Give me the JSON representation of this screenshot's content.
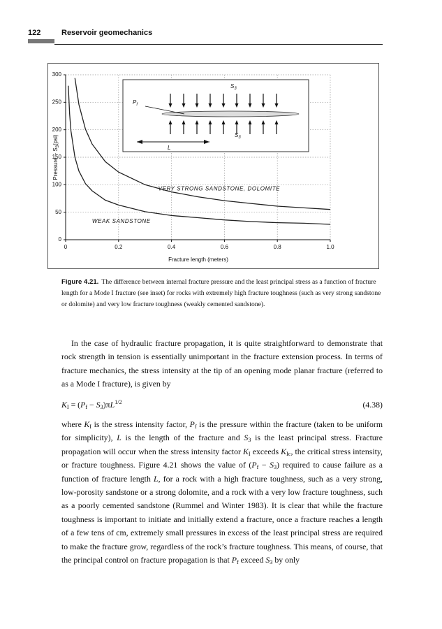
{
  "header": {
    "page_number": "122",
    "running_title": "Reservoir geomechanics"
  },
  "chart_data": {
    "type": "line",
    "ylabel": [
      "Pressure – S",
      "3",
      "(psi)"
    ],
    "xlabel": "Fracture length (meters)",
    "x": [
      0.01,
      0.015,
      0.02,
      0.035,
      0.05,
      0.075,
      0.1,
      0.15,
      0.2,
      0.3,
      0.4,
      0.5,
      0.6,
      0.7,
      0.8,
      0.9,
      1.0
    ],
    "series": [
      {
        "color": "#222222",
        "values": [
          null,
          null,
          null,
          294,
          246,
          201,
          174,
          142,
          123,
          100,
          87,
          78,
          71,
          66,
          61,
          58,
          55
        ]
      },
      {
        "color": "#222222",
        "values": [
          280,
          229,
          198,
          150,
          125,
          102,
          89,
          72,
          63,
          51,
          44,
          40,
          36,
          33,
          31,
          30,
          28
        ]
      }
    ],
    "xlim": [
      0,
      1
    ],
    "ylim": [
      0,
      300
    ],
    "xticks": [
      0,
      0.2,
      0.4,
      0.6,
      0.8,
      {
        "value": 1,
        "label": "1.0"
      }
    ],
    "yticks": [
      0,
      50,
      100,
      150,
      200,
      250,
      300
    ],
    "grid": true,
    "annotations": [
      "VERY STRONG SANDSTONE, DOLOMITE",
      "WEAK SANDSTONE"
    ],
    "inset": {
      "s3_top": [
        "S",
        "3"
      ],
      "s3_bottom": [
        "S",
        "3"
      ],
      "pf": [
        "P",
        "f"
      ],
      "length": "L"
    }
  },
  "caption": {
    "label": "Figure 4.21.",
    "text": "The difference between internal fracture pressure and the least principal stress as a function of fracture length for a Mode I fracture (see inset) for rocks with extremely high fracture toughness (such as very strong sandstone or dolomite) and very low fracture toughness (weakly cemented sandstone)."
  },
  "body": {
    "paragraph1": [
      "In the case of hydraulic fracture propagation, it is quite straightforward to demonstrate that rock strength in tension is essentially unimportant in the fracture extension process. In terms of fracture mechanics, the stress intensity at the tip of an opening mode planar fracture (referred to as a Mode I fracture), is given by"
    ],
    "equation": [
      [
        "K",
        "I"
      ],
      " = (",
      [
        "P",
        "f"
      ],
      " − ",
      [
        "S",
        "3"
      ],
      ")π",
      [
        "L"
      ],
      {
        "sup": "1/2"
      }
    ],
    "equation_number": "(4.38)",
    "paragraph2": [
      "where ",
      [
        "K",
        "I"
      ],
      " is the stress intensity factor, ",
      [
        "P",
        "f"
      ],
      " is the pressure within the fracture (taken to be uniform for simplicity), ",
      [
        "L"
      ],
      " is the length of the fracture and ",
      [
        "S",
        "3"
      ],
      " is the least principal stress. Fracture propagation will occur when the stress intensity factor ",
      [
        "K",
        "I"
      ],
      " exceeds ",
      [
        "K",
        "Ic"
      ],
      ", the critical stress intensity, or fracture toughness. Figure 4.21 shows the value of (",
      [
        "P",
        "f"
      ],
      " − ",
      [
        "S",
        "3"
      ],
      ") required to cause failure as a function of fracture length ",
      [
        "L"
      ],
      ", for a rock with a high fracture toughness, such as a very strong, low-porosity sandstone or a strong dolomite, and a rock with a very low fracture toughness, such as a poorly cemented sandstone (Rummel and Winter 1983). It is clear that while the fracture toughness is important to initiate and initially extend a fracture, once a fracture reaches a length of a few tens of cm, extremely small pressures in excess of the least principal stress are required to make the fracture grow, regardless of the rock’s fracture toughness. This means, of course, that the principal control on fracture propagation is that ",
      [
        "P",
        "f"
      ],
      " exceed ",
      [
        "S",
        "3"
      ],
      " by only"
    ]
  }
}
